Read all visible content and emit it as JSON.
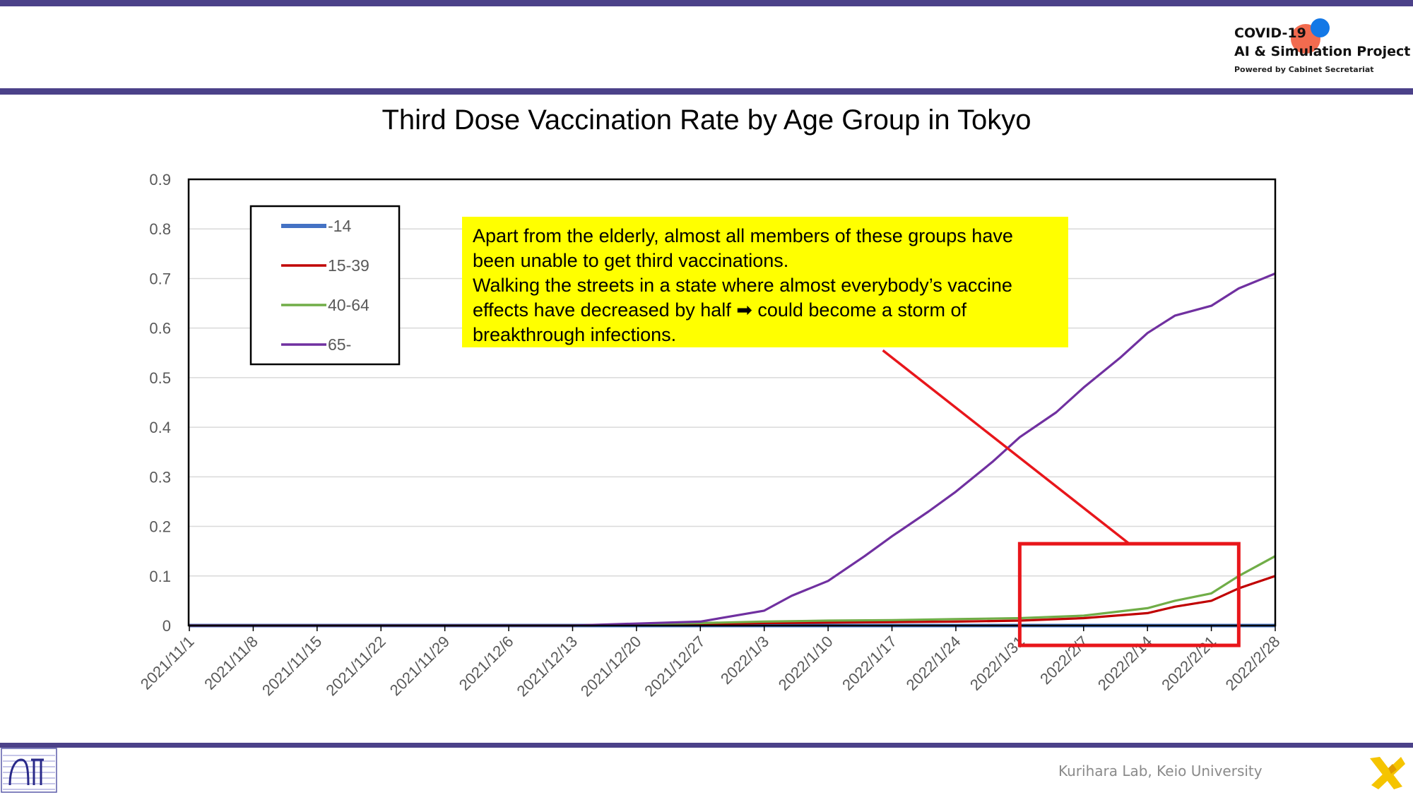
{
  "header": {
    "logo_title": "COVID-19",
    "logo_subtitle": "AI & Simulation Project",
    "logo_powered": "Powered by Cabinet Secretariat"
  },
  "title": "Third Dose Vaccination Rate by Age Group in Tokyo",
  "callout": {
    "lines": [
      "Apart from the elderly, almost all members of these groups have",
      "been unable to get third vaccinations.",
      "Walking the streets in a state where almost everybody’s vaccine",
      "effects have decreased by half ➡ could become a storm of",
      "breakthrough infections."
    ]
  },
  "footer": {
    "credit": "Kurihara Lab, Keio University"
  },
  "colors": {
    "brand_bar": "#4b4189",
    "highlight": "#ffff00",
    "annotation_red": "#e8161b"
  },
  "chart_data": {
    "type": "line",
    "title": "Third Dose Vaccination Rate by Age Group in Tokyo",
    "xlabel": "",
    "ylabel": "",
    "x_start": "2021/11/1",
    "x_end": "2022/2/28",
    "x_ticks": [
      "2021/11/1",
      "2021/11/8",
      "2021/11/15",
      "2021/11/22",
      "2021/11/29",
      "2021/12/6",
      "2021/12/13",
      "2021/12/20",
      "2021/12/27",
      "2022/1/3",
      "2022/1/10",
      "2022/1/17",
      "2022/1/24",
      "2022/1/31",
      "2022/2/7",
      "2022/2/14",
      "2022/2/21",
      "2022/2/28"
    ],
    "ylim": [
      0,
      0.9
    ],
    "y_ticks": [
      "0",
      "0.1",
      "0.2",
      "0.3",
      "0.4",
      "0.5",
      "0.6",
      "0.7",
      "0.8",
      "0.9"
    ],
    "grid": true,
    "legend_position": "top-left",
    "series": [
      {
        "name": "-14",
        "color": "#4472c4",
        "x": [
          "2021/11/1",
          "2022/2/28"
        ],
        "values": [
          0,
          0
        ]
      },
      {
        "name": "15-39",
        "color": "#c00000",
        "x": [
          "2021/11/1",
          "2021/12/13",
          "2021/12/20",
          "2021/12/27",
          "2022/1/3",
          "2022/1/10",
          "2022/1/17",
          "2022/1/24",
          "2022/1/31",
          "2022/2/7",
          "2022/2/14",
          "2022/2/17",
          "2022/2/21",
          "2022/2/24",
          "2022/2/28"
        ],
        "values": [
          0,
          0,
          0.002,
          0.003,
          0.005,
          0.006,
          0.007,
          0.008,
          0.01,
          0.015,
          0.025,
          0.038,
          0.05,
          0.075,
          0.1
        ]
      },
      {
        "name": "40-64",
        "color": "#70ad47",
        "x": [
          "2021/11/1",
          "2021/12/13",
          "2021/12/20",
          "2021/12/27",
          "2022/1/3",
          "2022/1/10",
          "2022/1/17",
          "2022/1/24",
          "2022/1/31",
          "2022/2/7",
          "2022/2/14",
          "2022/2/17",
          "2022/2/21",
          "2022/2/24",
          "2022/2/28"
        ],
        "values": [
          0,
          0,
          0.003,
          0.005,
          0.008,
          0.01,
          0.011,
          0.013,
          0.015,
          0.02,
          0.035,
          0.05,
          0.065,
          0.1,
          0.14
        ]
      },
      {
        "name": "65-",
        "color": "#7030a0",
        "x": [
          "2021/11/1",
          "2021/12/13",
          "2021/12/20",
          "2021/12/27",
          "2022/1/3",
          "2022/1/6",
          "2022/1/10",
          "2022/1/14",
          "2022/1/17",
          "2022/1/21",
          "2022/1/24",
          "2022/1/28",
          "2022/1/31",
          "2022/2/4",
          "2022/2/7",
          "2022/2/11",
          "2022/2/14",
          "2022/2/17",
          "2022/2/21",
          "2022/2/24",
          "2022/2/28"
        ],
        "values": [
          0,
          0,
          0.004,
          0.008,
          0.03,
          0.06,
          0.09,
          0.14,
          0.18,
          0.23,
          0.27,
          0.33,
          0.38,
          0.43,
          0.48,
          0.54,
          0.59,
          0.625,
          0.645,
          0.68,
          0.71
        ]
      }
    ],
    "annotations": [
      {
        "type": "rectangle",
        "color": "#e8161b",
        "x_from": "2022/1/31",
        "x_to": "2022/2/24",
        "y_from": -0.04,
        "y_to": 0.165
      },
      {
        "type": "arrow",
        "color": "#e8161b",
        "from": {
          "x": "2022/1/16",
          "y": 0.555
        },
        "to": {
          "x": "2022/2/12",
          "y": 0.165
        }
      }
    ]
  }
}
